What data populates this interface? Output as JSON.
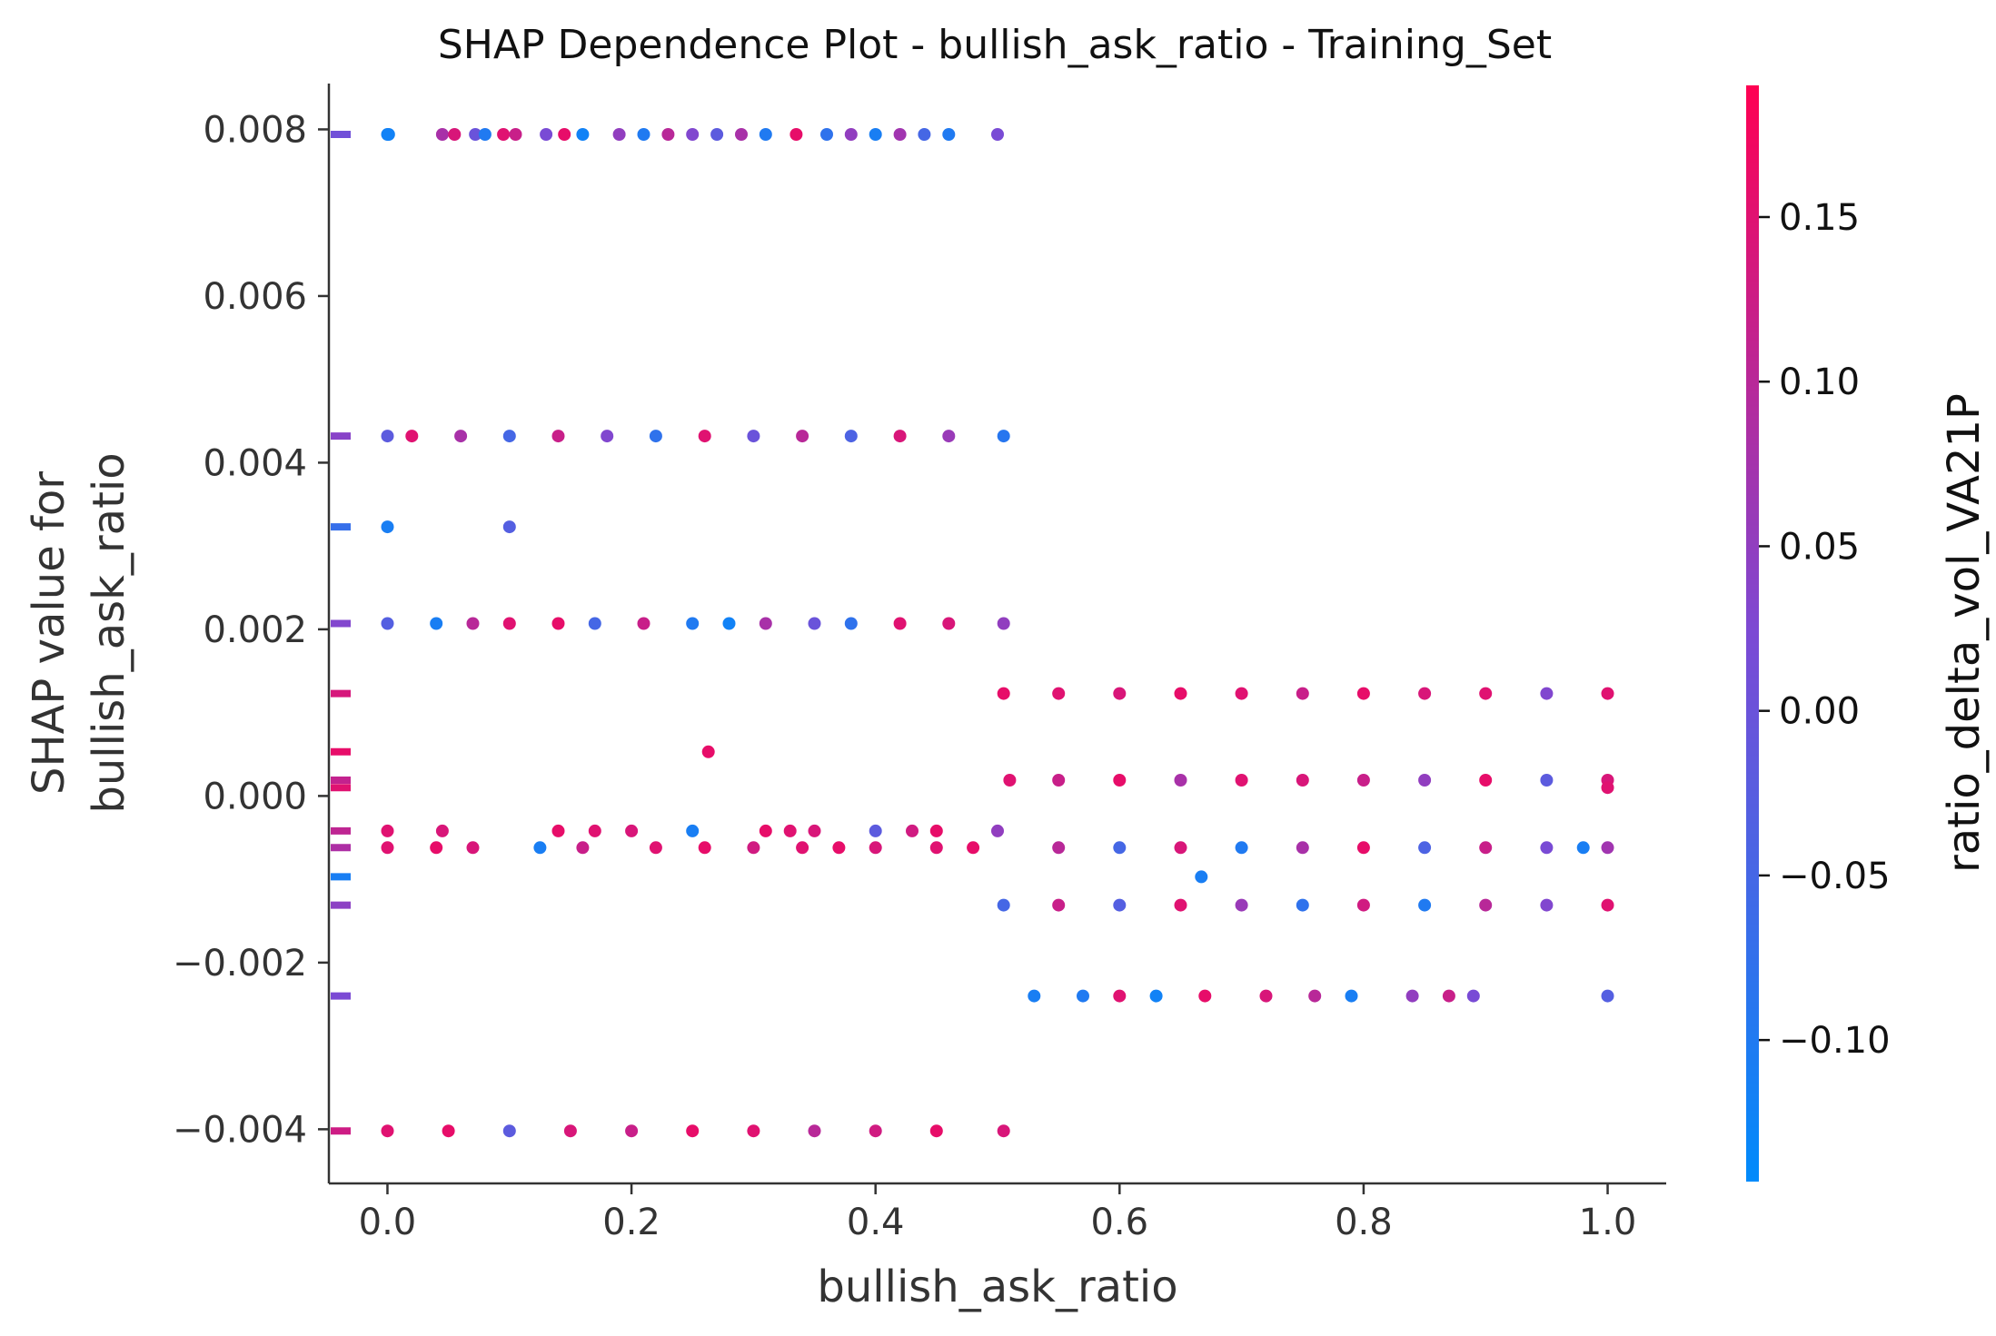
{
  "chart_data": {
    "type": "scatter",
    "title": "SHAP Dependence Plot - bullish_ask_ratio - Training_Set",
    "xlabel": "bullish_ask_ratio",
    "ylabel_line1": "SHAP value for",
    "ylabel_line2": "bullish_ask_ratio",
    "xlim": [
      -0.048,
      1.048
    ],
    "ylim": [
      -0.00465,
      0.00855
    ],
    "xticks": [
      0.0,
      0.2,
      0.4,
      0.6,
      0.8,
      1.0
    ],
    "xtick_labels": [
      "0.0",
      "0.2",
      "0.4",
      "0.6",
      "0.8",
      "1.0"
    ],
    "yticks": [
      -0.004,
      -0.002,
      0.0,
      0.002,
      0.004,
      0.006,
      0.008
    ],
    "ytick_labels": [
      "−0.004",
      "−0.002",
      "0.000",
      "0.002",
      "0.004",
      "0.006",
      "0.008"
    ],
    "grid": false,
    "colorbar": {
      "label": "ratio_delta_vol_VA21P",
      "range": [
        -0.143,
        0.19
      ],
      "ticks": [
        -0.1,
        -0.05,
        0.0,
        0.05,
        0.1,
        0.15
      ],
      "tick_labels": [
        "−0.10",
        "−0.05",
        "0.00",
        "0.05",
        "0.10",
        "0.15"
      ],
      "color_low": "#008bfb",
      "color_mid": "#7c4ad4",
      "color_high": "#ff0052"
    },
    "series": [
      {
        "points": [
          [
            0.0,
            0.00794,
            -0.12
          ],
          [
            0.001,
            0.00794,
            -0.12
          ],
          [
            0.045,
            0.00794,
            0.08
          ],
          [
            0.055,
            0.00794,
            0.14
          ],
          [
            0.072,
            0.00794,
            0.0
          ],
          [
            0.08,
            0.00794,
            -0.1
          ],
          [
            0.095,
            0.00794,
            0.15
          ],
          [
            0.105,
            0.00794,
            0.12
          ],
          [
            0.13,
            0.00794,
            0.02
          ],
          [
            0.145,
            0.00794,
            0.16
          ],
          [
            0.16,
            0.00794,
            -0.12
          ],
          [
            0.19,
            0.00794,
            0.05
          ],
          [
            0.21,
            0.00794,
            -0.1
          ],
          [
            0.23,
            0.00794,
            0.1
          ],
          [
            0.25,
            0.00794,
            0.03
          ],
          [
            0.27,
            0.00794,
            -0.02
          ],
          [
            0.29,
            0.00794,
            0.08
          ],
          [
            0.31,
            0.00794,
            -0.1
          ],
          [
            0.335,
            0.00794,
            0.16
          ],
          [
            0.36,
            0.00794,
            -0.08
          ],
          [
            0.38,
            0.00794,
            0.05
          ],
          [
            0.4,
            0.00794,
            -0.11
          ],
          [
            0.42,
            0.00794,
            0.07
          ],
          [
            0.44,
            0.00794,
            -0.05
          ],
          [
            0.46,
            0.00794,
            -0.1
          ],
          [
            0.5,
            0.00794,
            0.02
          ],
          [
            0.0,
            0.00432,
            -0.02
          ],
          [
            0.02,
            0.00432,
            0.15
          ],
          [
            0.06,
            0.00432,
            0.08
          ],
          [
            0.1,
            0.00432,
            -0.05
          ],
          [
            0.14,
            0.00432,
            0.12
          ],
          [
            0.18,
            0.00432,
            0.03
          ],
          [
            0.22,
            0.00432,
            -0.08
          ],
          [
            0.26,
            0.00432,
            0.15
          ],
          [
            0.3,
            0.00432,
            0.0
          ],
          [
            0.34,
            0.00432,
            0.1
          ],
          [
            0.38,
            0.00432,
            -0.04
          ],
          [
            0.42,
            0.00432,
            0.14
          ],
          [
            0.46,
            0.00432,
            0.06
          ],
          [
            0.505,
            0.00432,
            -0.09
          ],
          [
            0.0,
            0.00323,
            -0.11
          ],
          [
            0.1,
            0.00323,
            -0.03
          ],
          [
            0.0,
            0.00207,
            -0.03
          ],
          [
            0.04,
            0.00207,
            -0.11
          ],
          [
            0.07,
            0.00207,
            0.1
          ],
          [
            0.1,
            0.00207,
            0.15
          ],
          [
            0.14,
            0.00207,
            0.16
          ],
          [
            0.17,
            0.00207,
            -0.05
          ],
          [
            0.21,
            0.00207,
            0.12
          ],
          [
            0.25,
            0.00207,
            -0.1
          ],
          [
            0.28,
            0.00207,
            -0.12
          ],
          [
            0.31,
            0.00207,
            0.08
          ],
          [
            0.35,
            0.00207,
            0.0
          ],
          [
            0.38,
            0.00207,
            -0.08
          ],
          [
            0.42,
            0.00207,
            0.15
          ],
          [
            0.46,
            0.00207,
            0.14
          ],
          [
            0.505,
            0.00207,
            0.05
          ],
          [
            0.263,
            0.00053,
            0.16
          ],
          [
            0.0,
            -0.00042,
            0.15
          ],
          [
            0.045,
            -0.00042,
            0.14
          ],
          [
            0.14,
            -0.00042,
            0.16
          ],
          [
            0.17,
            -0.00042,
            0.15
          ],
          [
            0.2,
            -0.00042,
            0.14
          ],
          [
            0.25,
            -0.00042,
            -0.11
          ],
          [
            0.31,
            -0.00042,
            0.16
          ],
          [
            0.33,
            -0.00042,
            0.15
          ],
          [
            0.35,
            -0.00042,
            0.14
          ],
          [
            0.4,
            -0.00042,
            -0.02
          ],
          [
            0.43,
            -0.00042,
            0.13
          ],
          [
            0.45,
            -0.00042,
            0.16
          ],
          [
            0.5,
            -0.00042,
            0.05
          ],
          [
            0.0,
            -0.00062,
            0.15
          ],
          [
            0.04,
            -0.00062,
            0.16
          ],
          [
            0.07,
            -0.00062,
            0.14
          ],
          [
            0.125,
            -0.00062,
            -0.11
          ],
          [
            0.16,
            -0.00062,
            0.12
          ],
          [
            0.22,
            -0.00062,
            0.15
          ],
          [
            0.26,
            -0.00062,
            0.16
          ],
          [
            0.3,
            -0.00062,
            0.13
          ],
          [
            0.34,
            -0.00062,
            0.15
          ],
          [
            0.37,
            -0.00062,
            0.16
          ],
          [
            0.4,
            -0.00062,
            0.14
          ],
          [
            0.45,
            -0.00062,
            0.15
          ],
          [
            0.48,
            -0.00062,
            0.16
          ],
          [
            0.55,
            -0.00062,
            0.1
          ],
          [
            0.6,
            -0.00062,
            -0.05
          ],
          [
            0.65,
            -0.00062,
            0.14
          ],
          [
            0.7,
            -0.00062,
            -0.1
          ],
          [
            0.75,
            -0.00062,
            0.08
          ],
          [
            0.8,
            -0.00062,
            0.16
          ],
          [
            0.85,
            -0.00062,
            -0.04
          ],
          [
            0.9,
            -0.00062,
            0.12
          ],
          [
            0.95,
            -0.00062,
            0.02
          ],
          [
            0.98,
            -0.00062,
            -0.11
          ],
          [
            1.0,
            -0.00062,
            0.07
          ],
          [
            0.667,
            -0.00097,
            -0.11
          ],
          [
            0.505,
            0.00123,
            0.16
          ],
          [
            0.55,
            0.00123,
            0.15
          ],
          [
            0.6,
            0.00123,
            0.14
          ],
          [
            0.65,
            0.00123,
            0.16
          ],
          [
            0.7,
            0.00123,
            0.15
          ],
          [
            0.75,
            0.00123,
            0.12
          ],
          [
            0.8,
            0.00123,
            0.16
          ],
          [
            0.85,
            0.00123,
            0.14
          ],
          [
            0.9,
            0.00123,
            0.15
          ],
          [
            0.95,
            0.00123,
            0.03
          ],
          [
            1.0,
            0.00123,
            0.15
          ],
          [
            0.51,
            0.00019,
            0.15
          ],
          [
            0.55,
            0.00019,
            0.12
          ],
          [
            0.6,
            0.00019,
            0.16
          ],
          [
            0.65,
            0.00019,
            0.08
          ],
          [
            0.7,
            0.00019,
            0.15
          ],
          [
            0.75,
            0.00019,
            0.14
          ],
          [
            0.8,
            0.00019,
            0.12
          ],
          [
            0.85,
            0.00019,
            0.05
          ],
          [
            0.9,
            0.00019,
            0.16
          ],
          [
            0.95,
            0.00019,
            -0.02
          ],
          [
            1.0,
            0.00019,
            0.14
          ],
          [
            1.0,
            0.0001,
            0.15
          ],
          [
            0.505,
            -0.00131,
            -0.05
          ],
          [
            0.55,
            -0.00131,
            0.12
          ],
          [
            0.6,
            -0.00131,
            -0.03
          ],
          [
            0.65,
            -0.00131,
            0.15
          ],
          [
            0.7,
            -0.00131,
            0.06
          ],
          [
            0.75,
            -0.00131,
            -0.08
          ],
          [
            0.8,
            -0.00131,
            0.13
          ],
          [
            0.85,
            -0.00131,
            -0.1
          ],
          [
            0.9,
            -0.00131,
            0.1
          ],
          [
            0.95,
            -0.00131,
            0.03
          ],
          [
            1.0,
            -0.00131,
            0.15
          ],
          [
            0.53,
            -0.0024,
            -0.11
          ],
          [
            0.57,
            -0.0024,
            -0.1
          ],
          [
            0.6,
            -0.0024,
            0.15
          ],
          [
            0.63,
            -0.0024,
            -0.12
          ],
          [
            0.67,
            -0.0024,
            0.16
          ],
          [
            0.72,
            -0.0024,
            0.14
          ],
          [
            0.76,
            -0.0024,
            0.1
          ],
          [
            0.79,
            -0.0024,
            -0.11
          ],
          [
            0.84,
            -0.0024,
            0.05
          ],
          [
            0.87,
            -0.0024,
            0.12
          ],
          [
            0.89,
            -0.0024,
            0.02
          ],
          [
            1.0,
            -0.0024,
            -0.03
          ],
          [
            0.0,
            -0.00402,
            0.15
          ],
          [
            0.05,
            -0.00402,
            0.16
          ],
          [
            0.1,
            -0.00402,
            -0.02
          ],
          [
            0.15,
            -0.00402,
            0.14
          ],
          [
            0.2,
            -0.00402,
            0.12
          ],
          [
            0.25,
            -0.00402,
            0.16
          ],
          [
            0.3,
            -0.00402,
            0.15
          ],
          [
            0.35,
            -0.00402,
            0.1
          ],
          [
            0.4,
            -0.00402,
            0.13
          ],
          [
            0.45,
            -0.00402,
            0.16
          ],
          [
            0.505,
            -0.00402,
            0.14
          ]
        ]
      }
    ]
  }
}
